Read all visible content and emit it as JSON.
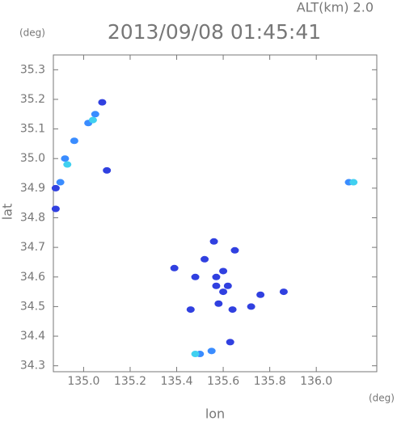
{
  "chart_data": {
    "type": "scatter",
    "title": "2013/09/08 01:45:41",
    "subtitle": "ALT(km) 2.0",
    "x_label": "lon",
    "y_label": "lat",
    "x_unit": "(deg)",
    "y_unit": "(deg)",
    "xlim": [
      134.87,
      136.26
    ],
    "ylim": [
      34.28,
      35.35
    ],
    "xticks": [
      {
        "value": 135.0,
        "label": "135.0"
      },
      135.2,
      135.4,
      135.6,
      135.8,
      {
        "value": 136.0,
        "label": "136.0"
      }
    ],
    "yticks": [
      34.3,
      34.4,
      34.5,
      34.6,
      34.7,
      34.8,
      34.9,
      {
        "value": 35.0,
        "label": "35.0"
      },
      35.1,
      35.2,
      35.3
    ],
    "series": [
      {
        "color": "#3040e0",
        "x": [
          134.88,
          134.88,
          135.08,
          135.1,
          135.39,
          135.46,
          135.48,
          135.52,
          135.56,
          135.57,
          135.58,
          135.6,
          135.62,
          135.64,
          135.65,
          135.72,
          135.76,
          135.86,
          135.63,
          135.57,
          135.6
        ],
        "y": [
          34.83,
          34.9,
          35.19,
          34.96,
          34.63,
          34.49,
          34.6,
          34.66,
          34.72,
          34.57,
          34.51,
          34.62,
          34.57,
          34.49,
          34.69,
          34.5,
          34.54,
          34.55,
          34.38,
          34.6,
          34.55
        ]
      },
      {
        "color": "#3a8cff",
        "x": [
          134.9,
          134.92,
          134.96,
          135.02,
          135.05,
          136.14,
          135.5,
          135.55
        ],
        "y": [
          34.92,
          35.0,
          35.06,
          35.12,
          35.15,
          34.92,
          34.34,
          34.35
        ]
      },
      {
        "color": "#40d0f0",
        "x": [
          134.93,
          135.04,
          136.16,
          135.48
        ],
        "y": [
          34.98,
          35.13,
          34.92,
          34.34
        ]
      }
    ]
  }
}
